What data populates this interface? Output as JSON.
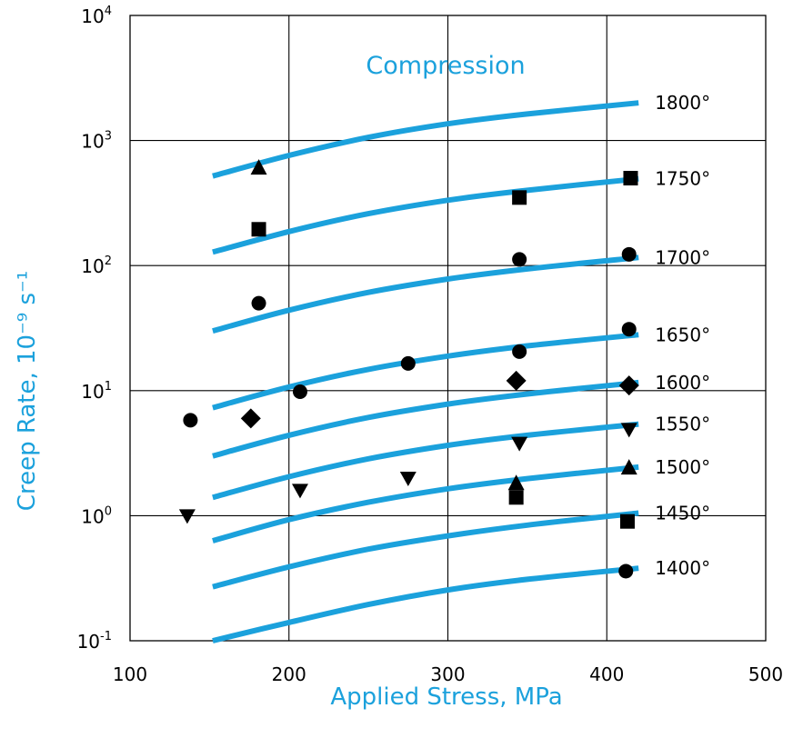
{
  "chart_data": {
    "type": "line",
    "x_scale": "linear",
    "y_scale": "log",
    "xlim": [
      100,
      500
    ],
    "ylim": [
      0.1,
      10000
    ],
    "grid": true,
    "xlabel": "Applied Stress, MPa",
    "ylabel": "Creep Rate, 10⁻⁹ s⁻¹",
    "annotation": "Compression",
    "x_ticks": [
      "100",
      "200",
      "300",
      "400",
      "500"
    ],
    "y_ticks": [
      {
        "value": 0.1,
        "base": "10",
        "exp": "-1"
      },
      {
        "value": 1,
        "base": "10",
        "exp": "0"
      },
      {
        "value": 10,
        "base": "10",
        "exp": "1"
      },
      {
        "value": 100,
        "base": "10",
        "exp": "2"
      },
      {
        "value": 1000,
        "base": "10",
        "exp": "3"
      },
      {
        "value": 10000,
        "base": "10",
        "exp": "4"
      }
    ],
    "colors": {
      "curve": "#1ba1dc",
      "title": "#1ba1dc",
      "marker": "#000000",
      "grid": "#000000"
    },
    "curves": [
      {
        "label": "1400°",
        "x": [
          152,
          200,
          250,
          300,
          350,
          420
        ],
        "y": [
          0.1,
          0.14,
          0.195,
          0.255,
          0.31,
          0.38
        ]
      },
      {
        "label": "1450°",
        "x": [
          152,
          200,
          250,
          300,
          350,
          420
        ],
        "y": [
          0.27,
          0.39,
          0.54,
          0.69,
          0.84,
          1.05
        ]
      },
      {
        "label": "1500°",
        "x": [
          152,
          200,
          250,
          300,
          350,
          420
        ],
        "y": [
          0.63,
          0.93,
          1.28,
          1.64,
          1.98,
          2.45
        ]
      },
      {
        "label": "1550°",
        "x": [
          152,
          200,
          250,
          300,
          350,
          420
        ],
        "y": [
          1.4,
          2.05,
          2.85,
          3.65,
          4.4,
          5.4
        ]
      },
      {
        "label": "1600°",
        "x": [
          152,
          200,
          250,
          300,
          350,
          420
        ],
        "y": [
          3.0,
          4.4,
          6.1,
          7.8,
          9.4,
          11.6
        ]
      },
      {
        "label": "1650°",
        "x": [
          152,
          200,
          250,
          300,
          350,
          420
        ],
        "y": [
          7.3,
          10.7,
          14.8,
          18.9,
          22.8,
          28
        ]
      },
      {
        "label": "1700°",
        "x": [
          152,
          200,
          250,
          300,
          350,
          420
        ],
        "y": [
          30,
          44,
          61,
          78,
          94,
          116
        ]
      },
      {
        "label": "1750°",
        "x": [
          152,
          200,
          250,
          300,
          350,
          420
        ],
        "y": [
          128,
          187,
          260,
          333,
          400,
          494
        ]
      },
      {
        "label": "1800°",
        "x": [
          152,
          200,
          250,
          300,
          350,
          420
        ],
        "y": [
          520,
          760,
          1060,
          1360,
          1630,
          2000
        ]
      }
    ],
    "points": [
      {
        "shape": "circle",
        "x": 138,
        "y": 5.8
      },
      {
        "shape": "circle",
        "x": 181,
        "y": 50
      },
      {
        "shape": "circle",
        "x": 207,
        "y": 9.8
      },
      {
        "shape": "circle",
        "x": 275,
        "y": 16.5
      },
      {
        "shape": "circle",
        "x": 345,
        "y": 20.5
      },
      {
        "shape": "circle",
        "x": 345,
        "y": 112
      },
      {
        "shape": "circle",
        "x": 414,
        "y": 31
      },
      {
        "shape": "circle",
        "x": 414,
        "y": 123
      },
      {
        "shape": "circle",
        "x": 412,
        "y": 0.36
      },
      {
        "shape": "square",
        "x": 181,
        "y": 195
      },
      {
        "shape": "square",
        "x": 345,
        "y": 350
      },
      {
        "shape": "square",
        "x": 415,
        "y": 500
      },
      {
        "shape": "square",
        "x": 343,
        "y": 1.4
      },
      {
        "shape": "square",
        "x": 413,
        "y": 0.9
      },
      {
        "shape": "triangle-up",
        "x": 181,
        "y": 600
      },
      {
        "shape": "triangle-up",
        "x": 343,
        "y": 1.8
      },
      {
        "shape": "triangle-up",
        "x": 414,
        "y": 2.4
      },
      {
        "shape": "triangle-down",
        "x": 136,
        "y": 1.0
      },
      {
        "shape": "triangle-down",
        "x": 207,
        "y": 1.6
      },
      {
        "shape": "triangle-down",
        "x": 275,
        "y": 2.0
      },
      {
        "shape": "triangle-down",
        "x": 345,
        "y": 3.8
      },
      {
        "shape": "triangle-down",
        "x": 414,
        "y": 4.9
      },
      {
        "shape": "diamond",
        "x": 176,
        "y": 6.0
      },
      {
        "shape": "diamond",
        "x": 343,
        "y": 12
      },
      {
        "shape": "diamond",
        "x": 414,
        "y": 11
      }
    ]
  }
}
